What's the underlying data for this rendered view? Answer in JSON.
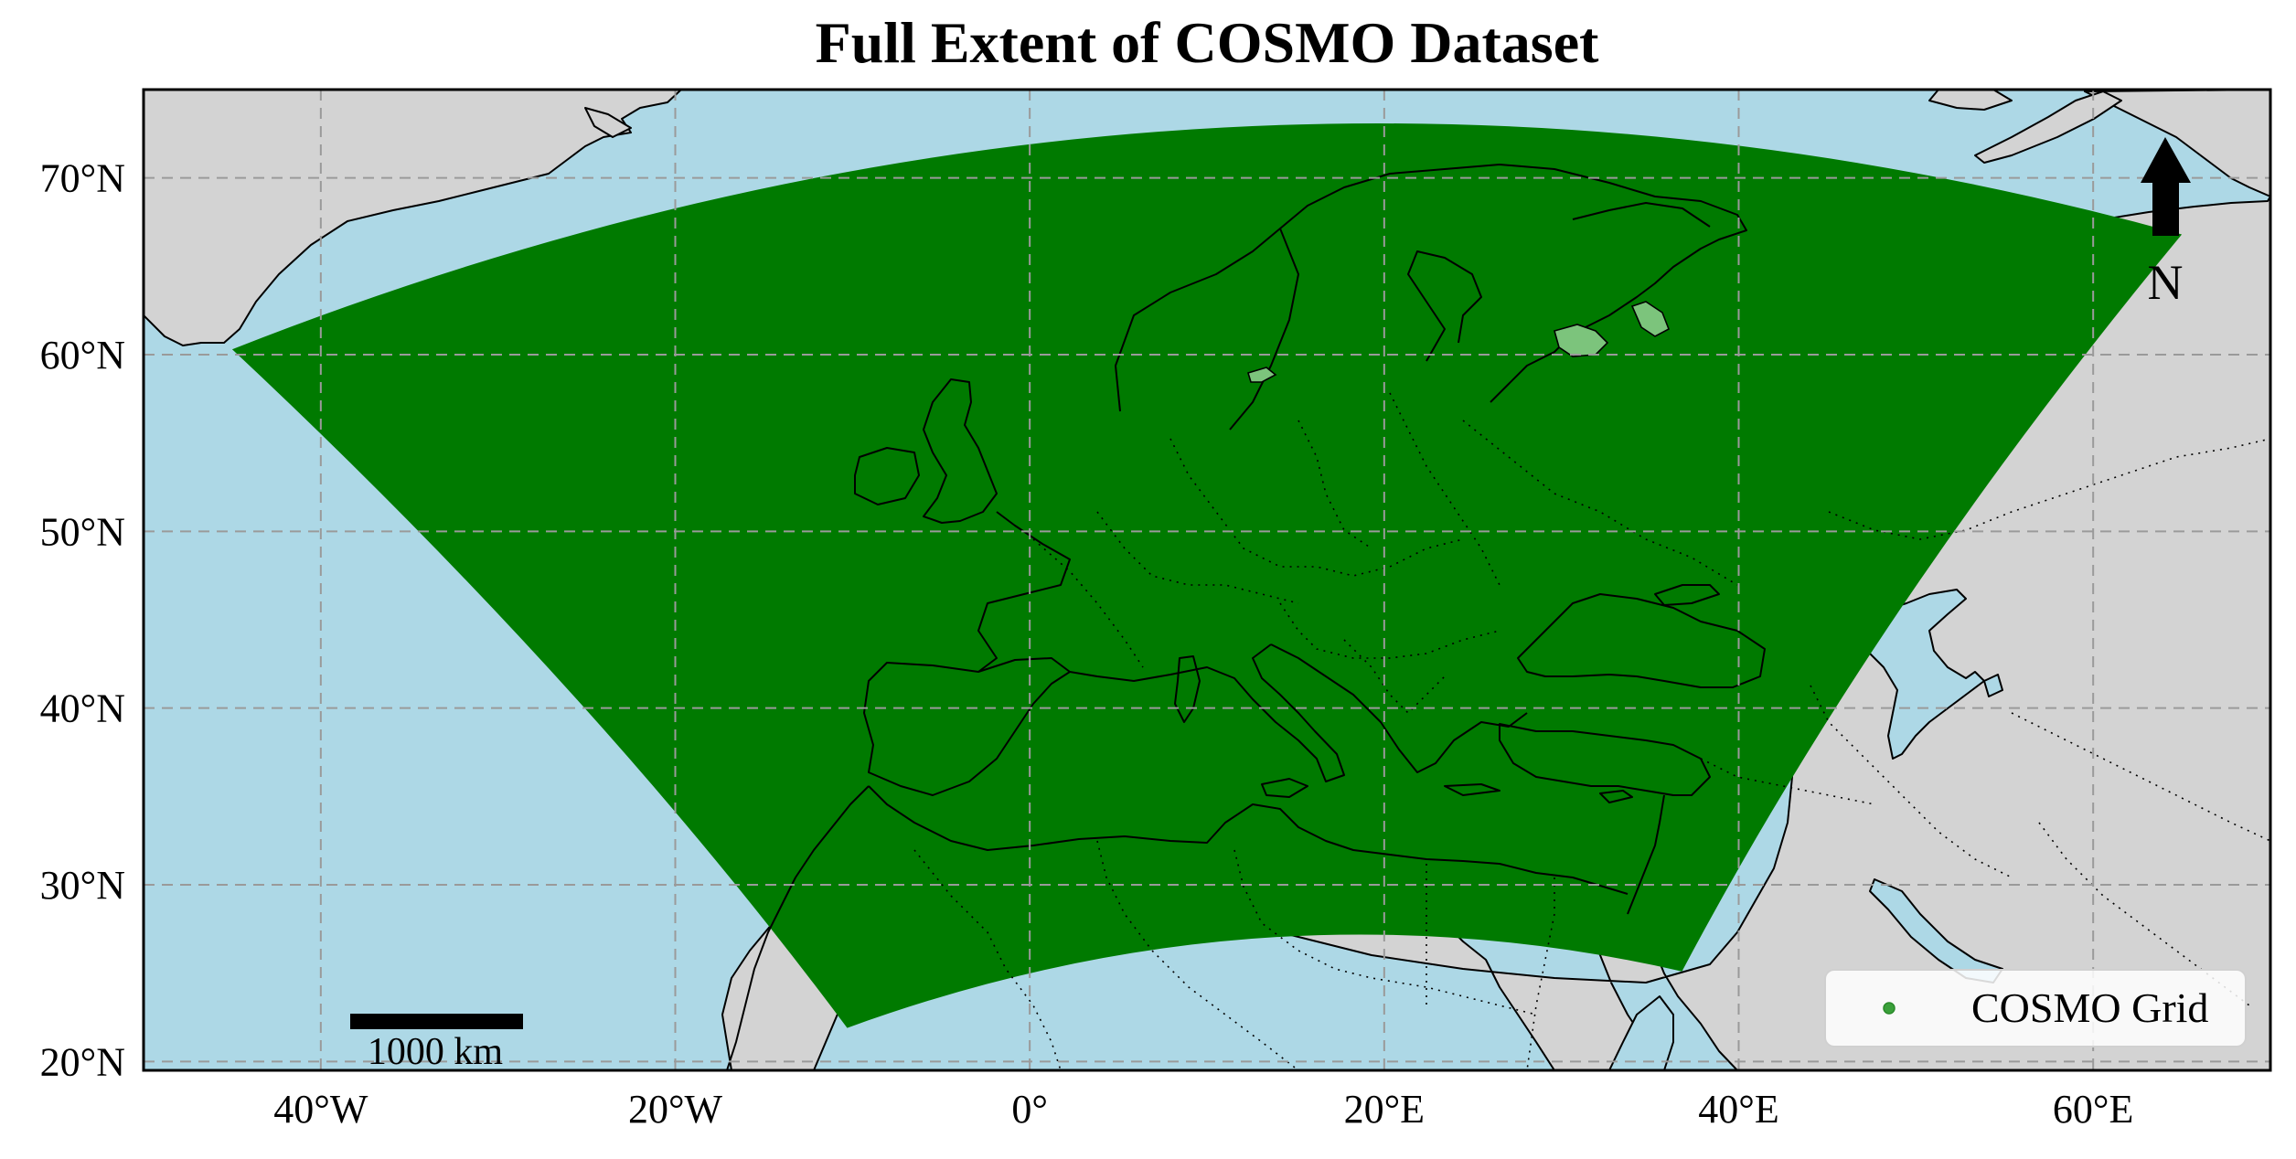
{
  "title": "Full Extent of COSMO Dataset",
  "colors": {
    "ocean": "#add8e6",
    "land": "#d3d3d3",
    "domain": "#007a00",
    "grid": "#9a9a9a",
    "lake_on_domain": "#7cc47c"
  },
  "axes": {
    "lon_range": [
      -50,
      70
    ],
    "lat_range": [
      19.5,
      75
    ],
    "grid": true,
    "grid_style": "dashed",
    "x_ticks": [
      {
        "value": -40,
        "label": "40°W"
      },
      {
        "value": -20,
        "label": "20°W"
      },
      {
        "value": 0,
        "label": "0°"
      },
      {
        "value": 20,
        "label": "20°E"
      },
      {
        "value": 40,
        "label": "40°E"
      },
      {
        "value": 60,
        "label": "60°E"
      }
    ],
    "y_ticks": [
      {
        "value": 70,
        "label": "70°N"
      },
      {
        "value": 60,
        "label": "60°N"
      },
      {
        "value": 50,
        "label": "50°N"
      },
      {
        "value": 40,
        "label": "40°N"
      },
      {
        "value": 30,
        "label": "30°N"
      },
      {
        "value": 20,
        "label": "20°N"
      }
    ]
  },
  "domain": {
    "corners": {
      "north_west": [
        -45,
        60.3
      ],
      "north_east": [
        65,
        66.8
      ],
      "south_east": [
        36.8,
        25.1
      ],
      "south_west": [
        -10.3,
        21.9
      ]
    },
    "north_edge_peak_lat": 72.8,
    "south_edge_peak_lat": 27.0
  },
  "legend": {
    "label": "COSMO Grid",
    "placement": "lower-right"
  },
  "scale_bar": {
    "label": "1000 km"
  },
  "north_arrow": {
    "label": "N"
  }
}
